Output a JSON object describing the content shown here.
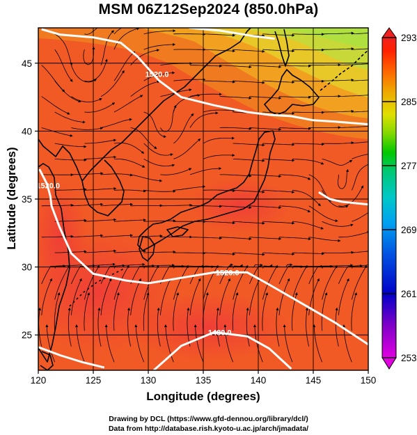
{
  "title": "MSM 06Z12Sep2024 (850.0hPa)",
  "chart_data": {
    "type": "map",
    "field": "temperature",
    "level": "850.0hPa",
    "xlabel": "Longitude (degrees)",
    "ylabel": "Latitude  (degrees)",
    "xlim": [
      120,
      150
    ],
    "ylim": [
      22.4,
      47.6
    ],
    "xticks": [
      "120",
      "125",
      "130",
      "135",
      "140",
      "145",
      "150"
    ],
    "yticks": [
      "25",
      "30",
      "35",
      "40",
      "45"
    ],
    "colorbar": {
      "min": 253,
      "max": 293,
      "ticks": [
        "253",
        "261",
        "269",
        "277",
        "285",
        "293"
      ],
      "colormap": [
        "#e000e0",
        "#8000c8",
        "#0000c8",
        "#0050e0",
        "#00a0f0",
        "#00c8c8",
        "#00c878",
        "#00c800",
        "#80d800",
        "#e0e000",
        "#f0a000",
        "#ff6000",
        "#ff2000",
        "#f02020"
      ]
    },
    "contours": [
      {
        "label": "1520.0",
        "points": [
          [
            120.3,
            47.5
          ],
          [
            122,
            47.1
          ],
          [
            125,
            46.9
          ],
          [
            127.5,
            46.5
          ],
          [
            129,
            45.5
          ],
          [
            131,
            43.7
          ],
          [
            133,
            42.5
          ],
          [
            136,
            41.9
          ],
          [
            139,
            41.4
          ],
          [
            141,
            41.2
          ],
          [
            143,
            41.1
          ],
          [
            145,
            40.8
          ],
          [
            147,
            40.7
          ],
          [
            150,
            40.5
          ]
        ]
      },
      {
        "label": "",
        "points": [
          [
            133.7,
            47.6
          ],
          [
            136.5,
            47.4
          ],
          [
            139.5,
            47.0
          ],
          [
            141.5,
            46.8
          ]
        ]
      },
      {
        "label": "",
        "points": [
          [
            145.5,
            35.5
          ],
          [
            146.5,
            35.0
          ],
          [
            147.6,
            34.8
          ],
          [
            150,
            34.6
          ]
        ]
      },
      {
        "label": "1520.0",
        "points": [
          [
            120.1,
            37.2
          ],
          [
            120.8,
            36.1
          ],
          [
            121.1,
            35.2
          ],
          [
            121.2,
            34.5
          ],
          [
            121.9,
            33.0
          ],
          [
            123.0,
            31.0
          ],
          [
            125.0,
            29.5
          ],
          [
            128,
            29.0
          ],
          [
            130,
            28.8
          ],
          [
            133,
            29.2
          ],
          [
            136,
            29.6
          ],
          [
            139,
            29.6
          ],
          [
            141,
            28.7
          ],
          [
            144,
            27.3
          ],
          [
            147,
            25.9
          ],
          [
            150,
            24.3
          ]
        ]
      },
      {
        "label": "1480.0",
        "points": [
          [
            120,
            24.1
          ],
          [
            122,
            23.5
          ],
          [
            124,
            23.0
          ],
          [
            126,
            22.6
          ]
        ]
      },
      {
        "label": "1480.0",
        "points": [
          [
            130.5,
            22.4
          ],
          [
            133,
            24.2
          ],
          [
            136,
            25.2
          ],
          [
            139,
            24.9
          ],
          [
            141,
            24.0
          ],
          [
            143,
            22.5
          ]
        ]
      }
    ],
    "contour_labels": [
      {
        "text": "1520.0",
        "lon": 130.8,
        "lat": 44.2
      },
      {
        "text": "1520.0",
        "lon": 120.9,
        "lat": 36.0
      },
      {
        "text": "1520.0",
        "lon": 137.2,
        "lat": 29.6
      },
      {
        "text": "1480.0",
        "lon": 136.5,
        "lat": 25.2
      }
    ],
    "vortices": [
      {
        "lon": 124.5,
        "lat": 43.5,
        "radius": 3.2
      },
      {
        "lon": 131.5,
        "lat": 39.2,
        "radius": 2.3
      },
      {
        "lon": 147.5,
        "lat": 35.0,
        "radius": 2.0
      }
    ]
  },
  "credits": {
    "line1": "Drawing by DCL (https://www.gfd-dennou.org/library/dcl/)",
    "line2": "Data from http://database.rish.kyoto-u.ac.jp/arch/jmadata/"
  }
}
